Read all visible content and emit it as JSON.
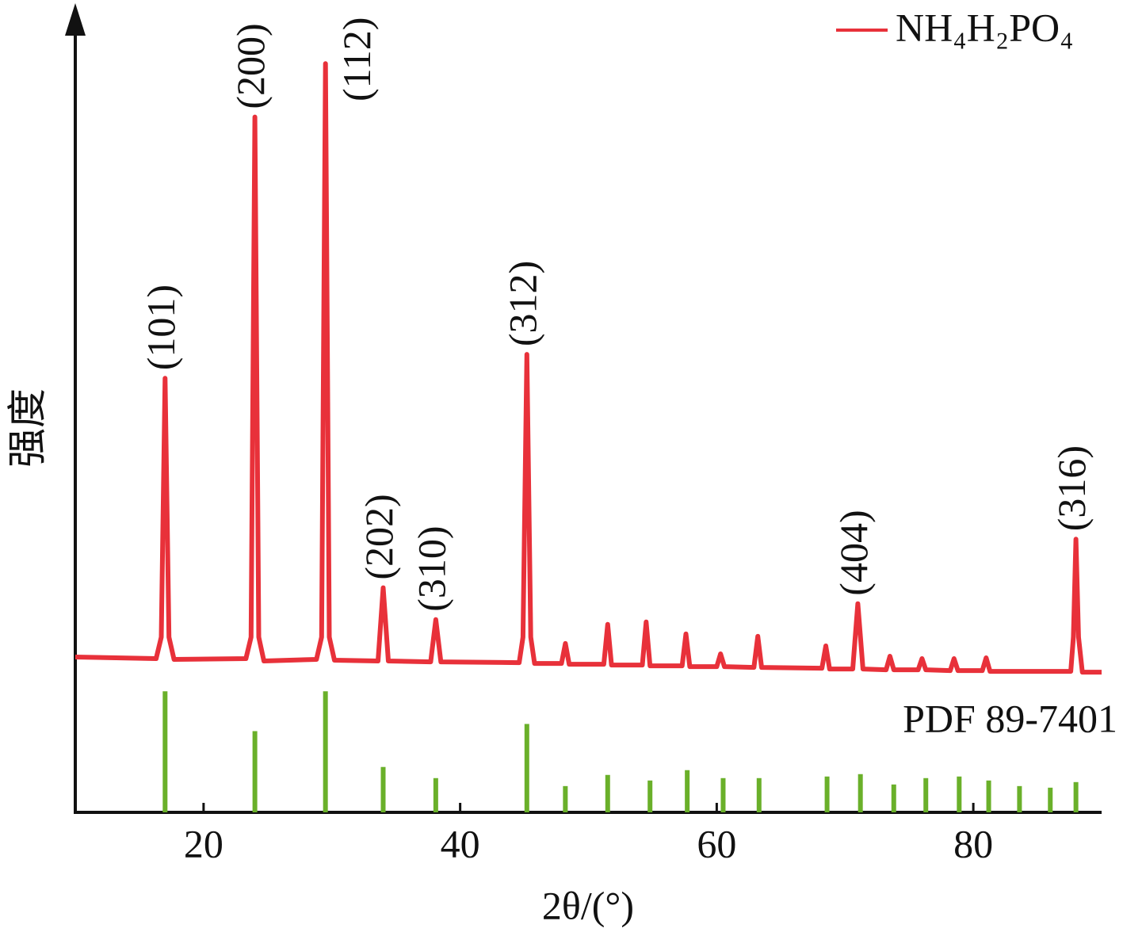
{
  "chart_data": {
    "type": "line",
    "xlabel": "2θ/(°)",
    "ylabel": "强度",
    "xlim": [
      10,
      90
    ],
    "xticks": [
      20,
      40,
      60,
      80
    ],
    "ylim": [
      0,
      100
    ],
    "legend": "upper right",
    "series": [
      {
        "name": "NH₄H₂PO₄",
        "color": "#e8313a",
        "x": [
          10,
          16.3,
          16.7,
          17.0,
          17.3,
          17.7,
          23.3,
          23.7,
          24.0,
          24.3,
          24.7,
          28.8,
          29.2,
          29.5,
          29.8,
          30.2,
          33.6,
          34.0,
          34.4,
          37.7,
          38.1,
          38.5,
          44.6,
          44.9,
          45.2,
          45.5,
          45.8,
          47.9,
          48.2,
          48.5,
          51.2,
          51.5,
          51.8,
          54.2,
          54.5,
          54.8,
          57.3,
          57.6,
          57.9,
          60.0,
          60.3,
          60.6,
          62.9,
          63.2,
          63.5,
          68.2,
          68.5,
          68.8,
          70.6,
          71.0,
          71.4,
          73.2,
          73.5,
          73.8,
          75.7,
          76.0,
          76.3,
          78.2,
          78.5,
          78.8,
          80.7,
          81.0,
          81.3,
          87.6,
          87.8,
          88.0,
          88.2,
          88.5,
          90
        ],
        "values": [
          19.5,
          19.3,
          22,
          54.5,
          22,
          19.2,
          19.3,
          22,
          87.3,
          22,
          19.0,
          19.2,
          22,
          94,
          22,
          19.1,
          19.0,
          28.2,
          19.0,
          18.9,
          24.2,
          18.9,
          18.8,
          22,
          57.5,
          22,
          18.7,
          18.7,
          21.2,
          18.6,
          18.6,
          23.6,
          18.5,
          18.5,
          23.9,
          18.4,
          18.4,
          22.4,
          18.3,
          18.3,
          19.9,
          18.3,
          18.2,
          22.1,
          18.2,
          18.1,
          20.9,
          18.0,
          18.0,
          26.2,
          18.0,
          17.9,
          19.6,
          17.9,
          17.9,
          19.3,
          17.9,
          17.8,
          19.3,
          17.8,
          17.8,
          19.4,
          17.7,
          17.7,
          22,
          34.3,
          22,
          17.6,
          17.6
        ]
      },
      {
        "name": "PDF 89-7401",
        "color": "#6ab02a",
        "style": "stick",
        "x": [
          17.0,
          24.0,
          29.5,
          34.0,
          38.1,
          45.2,
          48.2,
          51.5,
          54.8,
          57.7,
          60.5,
          63.3,
          68.6,
          71.2,
          73.8,
          76.3,
          78.9,
          81.2,
          83.6,
          86.0,
          88.0
        ],
        "values": [
          15.2,
          10.2,
          15.2,
          5.7,
          4.3,
          11.1,
          3.3,
          4.7,
          4.0,
          5.3,
          4.3,
          4.3,
          4.5,
          4.8,
          3.5,
          4.3,
          4.5,
          4.0,
          3.3,
          3.1,
          3.8
        ]
      }
    ],
    "annotations": [
      {
        "text": "(101)",
        "x": 17.0,
        "y": 54.5
      },
      {
        "text": "(200)",
        "x": 24.0,
        "y": 87.3
      },
      {
        "text": "(112)",
        "x": 29.5,
        "y": 94
      },
      {
        "text": "(202)",
        "x": 34.0,
        "y": 28.2
      },
      {
        "text": "(310)",
        "x": 38.1,
        "y": 24.2
      },
      {
        "text": "(312)",
        "x": 45.2,
        "y": 57.5
      },
      {
        "text": "(404)",
        "x": 71.0,
        "y": 26.2
      },
      {
        "text": "(316)",
        "x": 88.0,
        "y": 34.3
      }
    ]
  }
}
